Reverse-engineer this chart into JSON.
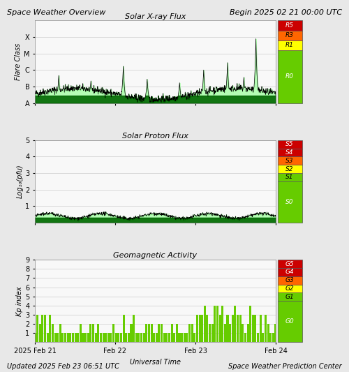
{
  "title_left": "Space Weather Overview",
  "title_right": "Begin 2025 02 21 00:00 UTC",
  "footer_left": "Updated 2025 Feb 23 06:51 UTC",
  "footer_right": "Space Weather Prediction Center",
  "xlabel": "Universal Time",
  "xtick_labels": [
    "2025 Feb 21",
    "Feb 22",
    "Feb 23",
    "Feb 24"
  ],
  "panel1_title": "Solar X-ray Flux",
  "panel1_ylabel": "Flare Class",
  "panel1_yticks": [
    "A",
    "B",
    "C",
    "M",
    "X"
  ],
  "panel1_scale_labels": [
    "R5",
    "R3",
    "R1",
    "R0"
  ],
  "panel1_scale_colors": [
    "#cc0000",
    "#ff6600",
    "#ffff00",
    "#66cc00"
  ],
  "panel2_title": "Solar Proton Flux",
  "panel2_ylabel": "Log₁₀(pfu)",
  "panel2_yticks": [
    "1",
    "2",
    "3",
    "4",
    "5"
  ],
  "panel2_scale_labels": [
    "S5",
    "S4",
    "S3",
    "S2",
    "S1",
    "S0"
  ],
  "panel2_scale_colors": [
    "#cc0000",
    "#cc0000",
    "#ff6600",
    "#ffff00",
    "#66cc00",
    "#66cc00"
  ],
  "panel3_title": "Geomagnetic Activity",
  "panel3_ylabel": "Kp index",
  "panel3_yticks": [
    "1",
    "2",
    "3",
    "4",
    "5",
    "6",
    "7",
    "8",
    "9"
  ],
  "panel3_scale_labels": [
    "G5",
    "G4",
    "G3",
    "G2",
    "G1",
    "G0"
  ],
  "panel3_scale_colors": [
    "#cc0000",
    "#cc0000",
    "#ff6600",
    "#ffff00",
    "#66cc00",
    "#66cc00"
  ],
  "bg_color": "#e8e8e8",
  "plot_bg": "#ffffff",
  "grid_color": "#cccccc",
  "line_color": "#000000",
  "fill_color_top": "#006600",
  "fill_color_bot": "#99ff99"
}
